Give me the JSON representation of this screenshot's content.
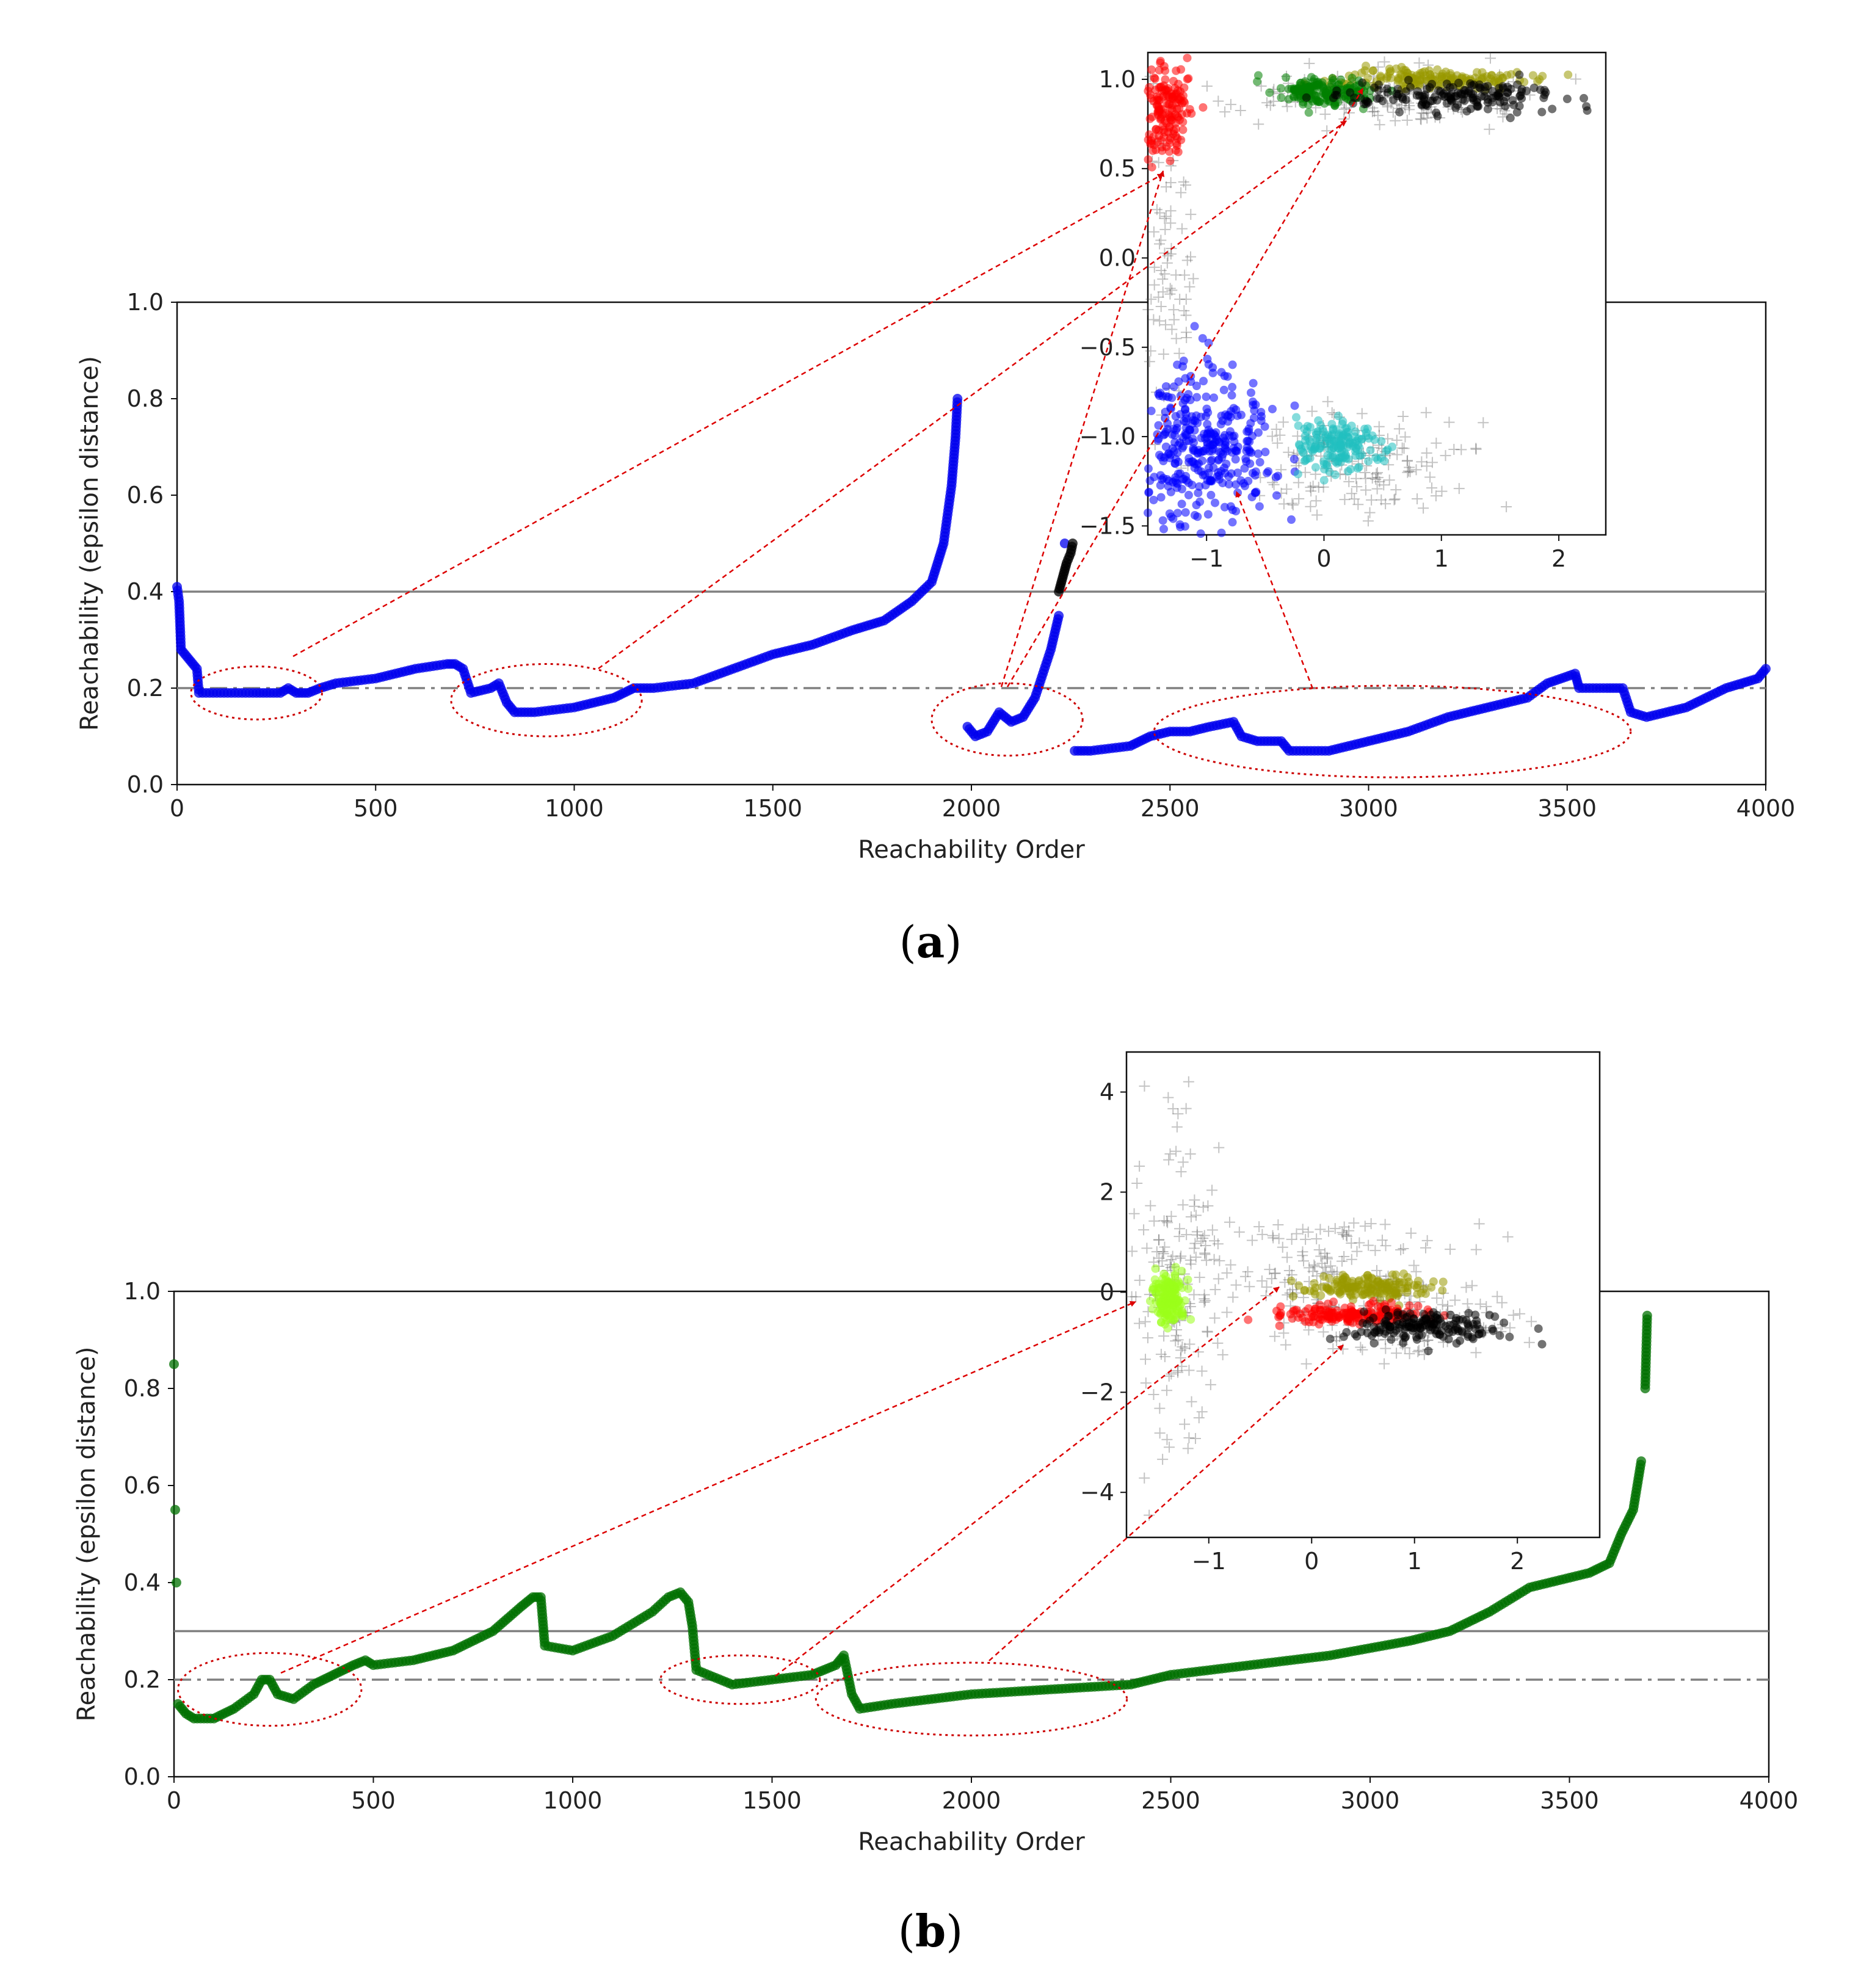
{
  "panels": [
    {
      "label": "a",
      "chart_data": {
        "type": "scatter",
        "xlabel": "Reachability Order",
        "ylabel": "Reachability (epsilon distance)",
        "xlim": [
          0,
          4000
        ],
        "ylim": [
          0,
          1.0
        ],
        "xticks": [
          0,
          500,
          1000,
          1500,
          2000,
          2500,
          3000,
          3500,
          4000
        ],
        "yticks": [
          0.0,
          0.2,
          0.4,
          0.6,
          0.8,
          1.0
        ],
        "hlines": [
          {
            "y": 0.4,
            "style": "solid",
            "color": "#808080"
          },
          {
            "y": 0.2,
            "style": "dashdot",
            "color": "#808080"
          }
        ],
        "series": [
          {
            "name": "reachability",
            "color": "#0000ee",
            "points": [
              [
                0,
                0.41
              ],
              [
                5,
                0.38
              ],
              [
                10,
                0.28
              ],
              [
                30,
                0.26
              ],
              [
                50,
                0.24
              ],
              [
                55,
                0.19
              ],
              [
                100,
                0.19
              ],
              [
                200,
                0.19
              ],
              [
                260,
                0.19
              ],
              [
                280,
                0.2
              ],
              [
                300,
                0.19
              ],
              [
                330,
                0.19
              ],
              [
                360,
                0.2
              ],
              [
                400,
                0.21
              ],
              [
                500,
                0.22
              ],
              [
                600,
                0.24
              ],
              [
                680,
                0.25
              ],
              [
                700,
                0.25
              ],
              [
                720,
                0.24
              ],
              [
                740,
                0.19
              ],
              [
                790,
                0.2
              ],
              [
                810,
                0.21
              ],
              [
                830,
                0.17
              ],
              [
                850,
                0.15
              ],
              [
                900,
                0.15
              ],
              [
                1000,
                0.16
              ],
              [
                1100,
                0.18
              ],
              [
                1150,
                0.2
              ],
              [
                1200,
                0.2
              ],
              [
                1300,
                0.21
              ],
              [
                1400,
                0.24
              ],
              [
                1500,
                0.27
              ],
              [
                1600,
                0.29
              ],
              [
                1700,
                0.32
              ],
              [
                1780,
                0.34
              ],
              [
                1850,
                0.38
              ],
              [
                1900,
                0.42
              ],
              [
                1930,
                0.5
              ],
              [
                1950,
                0.62
              ],
              [
                1960,
                0.72
              ],
              [
                1965,
                0.8
              ],
              [
                1990,
                0.12
              ],
              [
                2010,
                0.1
              ],
              [
                2040,
                0.11
              ],
              [
                2070,
                0.15
              ],
              [
                2100,
                0.13
              ],
              [
                2130,
                0.14
              ],
              [
                2160,
                0.18
              ],
              [
                2200,
                0.28
              ],
              [
                2220,
                0.35
              ],
              [
                2235,
                0.5
              ],
              [
                2260,
                0.07
              ],
              [
                2300,
                0.07
              ],
              [
                2400,
                0.08
              ],
              [
                2450,
                0.1
              ],
              [
                2500,
                0.11
              ],
              [
                2550,
                0.11
              ],
              [
                2600,
                0.12
              ],
              [
                2660,
                0.13
              ],
              [
                2680,
                0.1
              ],
              [
                2720,
                0.09
              ],
              [
                2780,
                0.09
              ],
              [
                2800,
                0.07
              ],
              [
                2900,
                0.07
              ],
              [
                3000,
                0.09
              ],
              [
                3100,
                0.11
              ],
              [
                3200,
                0.14
              ],
              [
                3300,
                0.16
              ],
              [
                3400,
                0.18
              ],
              [
                3450,
                0.21
              ],
              [
                3520,
                0.23
              ],
              [
                3530,
                0.2
              ],
              [
                3600,
                0.2
              ],
              [
                3640,
                0.2
              ],
              [
                3660,
                0.15
              ],
              [
                3700,
                0.14
              ],
              [
                3800,
                0.16
              ],
              [
                3900,
                0.2
              ],
              [
                3980,
                0.22
              ],
              [
                4000,
                0.24
              ]
            ]
          },
          {
            "name": "black points",
            "color": "#000000",
            "points": [
              [
                2220,
                0.4
              ],
              [
                2230,
                0.43
              ],
              [
                2240,
                0.46
              ],
              [
                2250,
                0.48
              ],
              [
                2255,
                0.5
              ]
            ]
          }
        ],
        "ellipses": [
          {
            "cx": 200,
            "cy": 0.19,
            "rx": 165,
            "ry": 0.055
          },
          {
            "cx": 930,
            "cy": 0.175,
            "rx": 240,
            "ry": 0.075
          },
          {
            "cx": 2090,
            "cy": 0.135,
            "rx": 190,
            "ry": 0.075
          },
          {
            "cx": 3060,
            "cy": 0.11,
            "rx": 600,
            "ry": 0.095
          }
        ]
      },
      "inset": {
        "xticks": [
          -1,
          0,
          1,
          2
        ],
        "yticks": [
          1.0,
          0.5,
          0.0,
          -0.5,
          -1.0,
          -1.5
        ],
        "xlim": [
          -1.5,
          2.4
        ],
        "ylim": [
          -1.55,
          1.15
        ],
        "clusters": [
          {
            "name": "red",
            "color": "#ff0000",
            "cx": -1.35,
            "cy": 0.85,
            "sx": 0.1,
            "sy": 0.15
          },
          {
            "name": "olive",
            "color": "#999900",
            "cx": 0.9,
            "cy": 1.0,
            "sx": 0.4,
            "sy": 0.03
          },
          {
            "name": "green",
            "color": "#008000",
            "cx": 0.0,
            "cy": 0.93,
            "sx": 0.2,
            "sy": 0.04
          },
          {
            "name": "black",
            "color": "#000000",
            "cx": 1.2,
            "cy": 0.9,
            "sx": 0.5,
            "sy": 0.04
          },
          {
            "name": "blue",
            "color": "#0000ff",
            "cx": -1.05,
            "cy": -1.05,
            "sx": 0.3,
            "sy": 0.2
          },
          {
            "name": "cyan",
            "color": "#20c0c0",
            "cx": 0.1,
            "cy": -1.05,
            "sx": 0.18,
            "sy": 0.07
          }
        ]
      }
    },
    {
      "label": "b",
      "chart_data": {
        "type": "scatter",
        "xlabel": "Reachability Order",
        "ylabel": "Reachability (epsilon distance)",
        "xlim": [
          0,
          4000
        ],
        "ylim": [
          0,
          1.0
        ],
        "xticks": [
          0,
          500,
          1000,
          1500,
          2000,
          2500,
          3000,
          3500,
          4000
        ],
        "yticks": [
          0.0,
          0.2,
          0.4,
          0.6,
          0.8,
          1.0
        ],
        "hlines": [
          {
            "y": 0.3,
            "style": "solid",
            "color": "#808080"
          },
          {
            "y": 0.2,
            "style": "dashdot",
            "color": "#808080"
          }
        ],
        "series": [
          {
            "name": "reachability",
            "color": "#007000",
            "points": [
              [
                0,
                0.85
              ],
              [
                3,
                0.55
              ],
              [
                6,
                0.4
              ],
              [
                10,
                0.15
              ],
              [
                30,
                0.13
              ],
              [
                50,
                0.12
              ],
              [
                100,
                0.12
              ],
              [
                150,
                0.14
              ],
              [
                200,
                0.17
              ],
              [
                220,
                0.2
              ],
              [
                240,
                0.2
              ],
              [
                260,
                0.17
              ],
              [
                300,
                0.16
              ],
              [
                350,
                0.19
              ],
              [
                400,
                0.21
              ],
              [
                450,
                0.23
              ],
              [
                480,
                0.24
              ],
              [
                500,
                0.23
              ],
              [
                600,
                0.24
              ],
              [
                700,
                0.26
              ],
              [
                800,
                0.3
              ],
              [
                870,
                0.35
              ],
              [
                900,
                0.37
              ],
              [
                920,
                0.37
              ],
              [
                930,
                0.27
              ],
              [
                1000,
                0.26
              ],
              [
                1100,
                0.29
              ],
              [
                1200,
                0.34
              ],
              [
                1240,
                0.37
              ],
              [
                1270,
                0.38
              ],
              [
                1290,
                0.36
              ],
              [
                1300,
                0.31
              ],
              [
                1310,
                0.22
              ],
              [
                1400,
                0.19
              ],
              [
                1500,
                0.2
              ],
              [
                1600,
                0.21
              ],
              [
                1660,
                0.23
              ],
              [
                1680,
                0.25
              ],
              [
                1700,
                0.17
              ],
              [
                1720,
                0.14
              ],
              [
                1800,
                0.15
              ],
              [
                1900,
                0.16
              ],
              [
                2000,
                0.17
              ],
              [
                2200,
                0.18
              ],
              [
                2400,
                0.19
              ],
              [
                2500,
                0.21
              ],
              [
                2700,
                0.23
              ],
              [
                2900,
                0.25
              ],
              [
                3100,
                0.28
              ],
              [
                3200,
                0.3
              ],
              [
                3300,
                0.34
              ],
              [
                3400,
                0.39
              ],
              [
                3500,
                0.41
              ],
              [
                3550,
                0.42
              ],
              [
                3600,
                0.44
              ],
              [
                3630,
                0.5
              ],
              [
                3660,
                0.55
              ],
              [
                3680,
                0.65
              ],
              [
                3690,
                0.8
              ],
              [
                3695,
                0.95
              ]
            ]
          }
        ],
        "ellipses": [
          {
            "cx": 240,
            "cy": 0.18,
            "rx": 230,
            "ry": 0.075
          },
          {
            "cx": 1420,
            "cy": 0.2,
            "rx": 200,
            "ry": 0.05
          },
          {
            "cx": 2000,
            "cy": 0.16,
            "rx": 390,
            "ry": 0.075
          }
        ]
      },
      "inset": {
        "xticks": [
          -1,
          0,
          1,
          2
        ],
        "yticks": [
          4,
          2,
          0,
          -2,
          -4
        ],
        "xlim": [
          -1.8,
          2.8
        ],
        "ylim": [
          -4.9,
          4.8
        ],
        "clusters": [
          {
            "name": "yellowgreen",
            "color": "#9aff1a",
            "cx": -1.4,
            "cy": -0.1,
            "sx": 0.08,
            "sy": 0.25
          },
          {
            "name": "olive",
            "color": "#999900",
            "cx": 0.55,
            "cy": 0.1,
            "sx": 0.3,
            "sy": 0.12
          },
          {
            "name": "red",
            "color": "#ff0000",
            "cx": 0.4,
            "cy": -0.45,
            "sx": 0.35,
            "sy": 0.1
          },
          {
            "name": "black",
            "color": "#000000",
            "cx": 1.1,
            "cy": -0.7,
            "sx": 0.35,
            "sy": 0.15
          }
        ]
      }
    }
  ]
}
